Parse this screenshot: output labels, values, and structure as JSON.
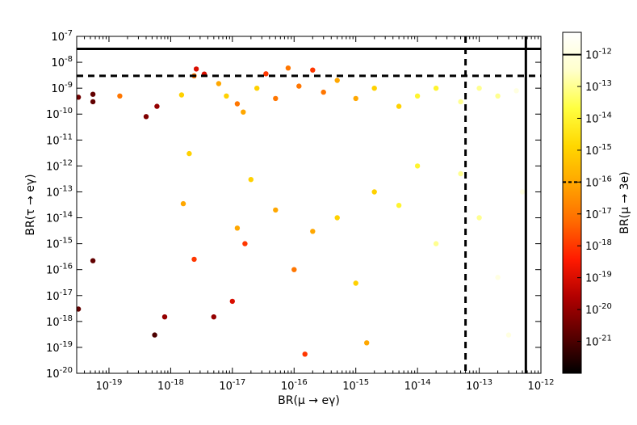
{
  "chart_data": {
    "type": "scatter",
    "xlabel": "BR(μ → eγ)",
    "ylabel": "BR(τ → eγ)",
    "colorbar_label": "BR(μ → 3e)",
    "x_scale": "log",
    "y_scale": "log",
    "xlim": [
      3e-20,
      1e-12
    ],
    "ylim": [
      1e-20,
      1e-07
    ],
    "x_ticks": [
      1e-19,
      1e-18,
      1e-17,
      1e-16,
      1e-15,
      1e-14,
      1e-13,
      1e-12
    ],
    "x_tick_labels": [
      {
        "base": "10",
        "exp": "-19"
      },
      {
        "base": "10",
        "exp": "-18"
      },
      {
        "base": "10",
        "exp": "-17"
      },
      {
        "base": "10",
        "exp": "-16"
      },
      {
        "base": "10",
        "exp": "-15"
      },
      {
        "base": "10",
        "exp": "-14"
      },
      {
        "base": "10",
        "exp": "-13"
      },
      {
        "base": "10",
        "exp": "-12"
      }
    ],
    "y_ticks": [
      1e-20,
      1e-19,
      1e-18,
      1e-17,
      1e-16,
      1e-15,
      1e-14,
      1e-13,
      1e-12,
      1e-11,
      1e-10,
      1e-09,
      1e-08,
      1e-07
    ],
    "y_tick_labels": [
      {
        "base": "10",
        "exp": "-20"
      },
      {
        "base": "10",
        "exp": "-19"
      },
      {
        "base": "10",
        "exp": "-18"
      },
      {
        "base": "10",
        "exp": "-17"
      },
      {
        "base": "10",
        "exp": "-16"
      },
      {
        "base": "10",
        "exp": "-15"
      },
      {
        "base": "10",
        "exp": "-14"
      },
      {
        "base": "10",
        "exp": "-13"
      },
      {
        "base": "10",
        "exp": "-12"
      },
      {
        "base": "10",
        "exp": "-11"
      },
      {
        "base": "10",
        "exp": "-10"
      },
      {
        "base": "10",
        "exp": "-9"
      },
      {
        "base": "10",
        "exp": "-8"
      },
      {
        "base": "10",
        "exp": "-7"
      }
    ],
    "colorbar": {
      "scale": "log",
      "range": [
        1e-22,
        5e-12
      ],
      "ticks": [
        1e-21,
        1e-20,
        1e-19,
        1e-18,
        1e-17,
        1e-16,
        1e-15,
        1e-14,
        1e-13,
        1e-12
      ],
      "tick_labels": [
        {
          "base": "10",
          "exp": "-21"
        },
        {
          "base": "10",
          "exp": "-20"
        },
        {
          "base": "10",
          "exp": "-19"
        },
        {
          "base": "10",
          "exp": "-18"
        },
        {
          "base": "10",
          "exp": "-17"
        },
        {
          "base": "10",
          "exp": "-16"
        },
        {
          "base": "10",
          "exp": "-15"
        },
        {
          "base": "10",
          "exp": "-14"
        },
        {
          "base": "10",
          "exp": "-13"
        },
        {
          "base": "10",
          "exp": "-12"
        }
      ],
      "colors": [
        "#000000",
        "#5a0000",
        "#b00000",
        "#ff1a00",
        "#ff6a00",
        "#ffa500",
        "#ffd700",
        "#ffff40",
        "#ffffcc",
        "#ffffff"
      ],
      "reference_lines": [
        {
          "value": 1e-12,
          "style": "solid"
        },
        {
          "value": 1e-16,
          "style": "dashed"
        }
      ]
    },
    "reference_lines": [
      {
        "axis": "y",
        "value": 3.3e-08,
        "style": "solid"
      },
      {
        "axis": "y",
        "value": 3e-09,
        "style": "dashed"
      },
      {
        "axis": "x",
        "value": 6e-14,
        "style": "dashed"
      },
      {
        "axis": "x",
        "value": 5.7e-13,
        "style": "solid"
      }
    ],
    "points_upper_band": [
      [
        3.2e-20,
        4.5e-10,
        3e-21
      ],
      [
        5.5e-20,
        5.8e-10,
        2e-21
      ],
      [
        5.5e-20,
        3e-10,
        2e-21
      ],
      [
        1.5e-19,
        5e-10,
        1e-17
      ],
      [
        4e-19,
        8e-11,
        5e-21
      ],
      [
        6e-19,
        2e-10,
        1e-20
      ],
      [
        1.5e-18,
        5.5e-10,
        1e-15
      ],
      [
        2.6e-18,
        5.5e-09,
        1e-19
      ],
      [
        3.5e-18,
        3.5e-09,
        1e-19
      ],
      [
        2.4e-18,
        3e-09,
        1e-17
      ],
      [
        6e-18,
        1.5e-09,
        1e-16
      ],
      [
        8e-18,
        5e-10,
        1e-15
      ],
      [
        1.2e-17,
        2.5e-10,
        1e-17
      ],
      [
        1.5e-17,
        1.2e-10,
        1e-16
      ],
      [
        2.5e-17,
        1e-09,
        1e-15
      ],
      [
        5e-17,
        4e-10,
        1e-17
      ],
      [
        3.5e-17,
        3.6e-09,
        1e-18
      ],
      [
        8e-17,
        6e-09,
        1e-17
      ],
      [
        1.2e-16,
        1.2e-09,
        1e-17
      ],
      [
        2e-16,
        5e-09,
        1e-18
      ],
      [
        3e-16,
        7e-10,
        1e-17
      ],
      [
        5e-16,
        2e-09,
        1e-16
      ],
      [
        1e-15,
        4e-10,
        1e-16
      ],
      [
        2e-15,
        1e-09,
        1e-15
      ],
      [
        5e-15,
        2e-10,
        1e-15
      ],
      [
        1e-14,
        5e-10,
        1e-14
      ],
      [
        2e-14,
        1e-09,
        1e-14
      ],
      [
        5e-14,
        3e-10,
        1e-13
      ],
      [
        1e-13,
        1e-09,
        1e-13
      ],
      [
        2e-13,
        5e-10,
        1e-13
      ],
      [
        4e-13,
        8e-10,
        1e-12
      ]
    ],
    "points_lower_band": [
      [
        3.2e-20,
        3e-18,
        2e-21
      ],
      [
        5.5e-20,
        2.2e-16,
        2e-21
      ],
      [
        5.5e-19,
        3e-19,
        1e-21
      ],
      [
        8e-19,
        1.5e-18,
        1e-20
      ],
      [
        1.6e-18,
        3.5e-14,
        1e-16
      ],
      [
        2e-18,
        3e-12,
        1e-15
      ],
      [
        2.4e-18,
        2.5e-16,
        1e-18
      ],
      [
        5e-18,
        1.5e-18,
        1e-20
      ],
      [
        1e-17,
        6e-18,
        1e-19
      ],
      [
        1.2e-17,
        4e-15,
        1e-16
      ],
      [
        1.6e-17,
        1e-15,
        1e-18
      ],
      [
        2e-17,
        3e-13,
        1e-15
      ],
      [
        5e-17,
        2e-14,
        1e-16
      ],
      [
        1e-16,
        1e-16,
        1e-17
      ],
      [
        1.5e-16,
        5.5e-20,
        1e-18
      ],
      [
        2e-16,
        3e-15,
        1e-16
      ],
      [
        5e-16,
        1e-14,
        1e-15
      ],
      [
        1e-15,
        3e-17,
        1e-15
      ],
      [
        1.5e-15,
        1.5e-19,
        1e-16
      ],
      [
        2e-15,
        1e-13,
        1e-15
      ],
      [
        5e-15,
        3e-14,
        1e-14
      ],
      [
        1e-14,
        1e-12,
        1e-14
      ],
      [
        2e-14,
        1e-15,
        1e-13
      ],
      [
        5e-14,
        5e-13,
        1e-13
      ],
      [
        1e-13,
        1e-14,
        1e-13
      ],
      [
        2e-13,
        5e-17,
        1e-12
      ],
      [
        3e-13,
        3e-19,
        1e-12
      ],
      [
        5e-13,
        1e-13,
        1e-12
      ]
    ]
  }
}
